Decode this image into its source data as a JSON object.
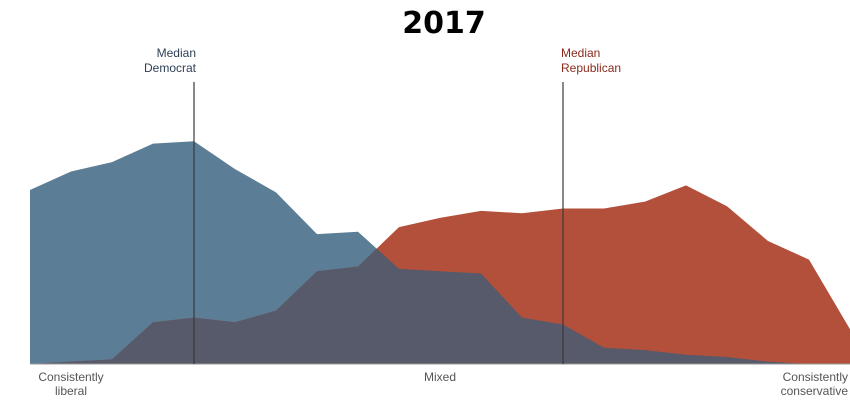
{
  "chart_data": {
    "type": "area",
    "title": "2017",
    "x": [
      0,
      1,
      2,
      3,
      4,
      5,
      6,
      7,
      8,
      9,
      10,
      11,
      12,
      13,
      14,
      15,
      16,
      17,
      18,
      19,
      20
    ],
    "ylim": [
      0,
      1
    ],
    "grid": false,
    "series": [
      {
        "key": "democrat",
        "color": "#5b7d96",
        "values": [
          0.75,
          0.83,
          0.87,
          0.95,
          0.96,
          0.84,
          0.74,
          0.56,
          0.57,
          0.41,
          0.4,
          0.39,
          0.2,
          0.17,
          0.07,
          0.06,
          0.04,
          0.03,
          0.01,
          0.0,
          0.0
        ]
      },
      {
        "key": "republican",
        "color": "#b3503b",
        "values": [
          0.0,
          0.01,
          0.02,
          0.18,
          0.2,
          0.18,
          0.23,
          0.4,
          0.42,
          0.59,
          0.63,
          0.66,
          0.65,
          0.67,
          0.67,
          0.7,
          0.77,
          0.68,
          0.53,
          0.45,
          0.15
        ]
      }
    ],
    "overlap_color": "#565a6a",
    "medians": [
      {
        "series": "democrat",
        "x": 4,
        "label_lines": [
          "Median",
          "Democrat"
        ],
        "color": "#2d3e55"
      },
      {
        "series": "republican",
        "x": 13,
        "label_lines": [
          "Median",
          "Republican"
        ],
        "color": "#8a2a1c"
      }
    ],
    "x_labels": [
      {
        "lines": [
          "Consistently",
          "liberal"
        ],
        "x": 1,
        "anchor": "middle"
      },
      {
        "lines": [
          "Mixed"
        ],
        "x": 10,
        "anchor": "middle"
      },
      {
        "lines": [
          "Consistently",
          "conservative"
        ],
        "x": 20,
        "anchor": "end"
      }
    ]
  }
}
